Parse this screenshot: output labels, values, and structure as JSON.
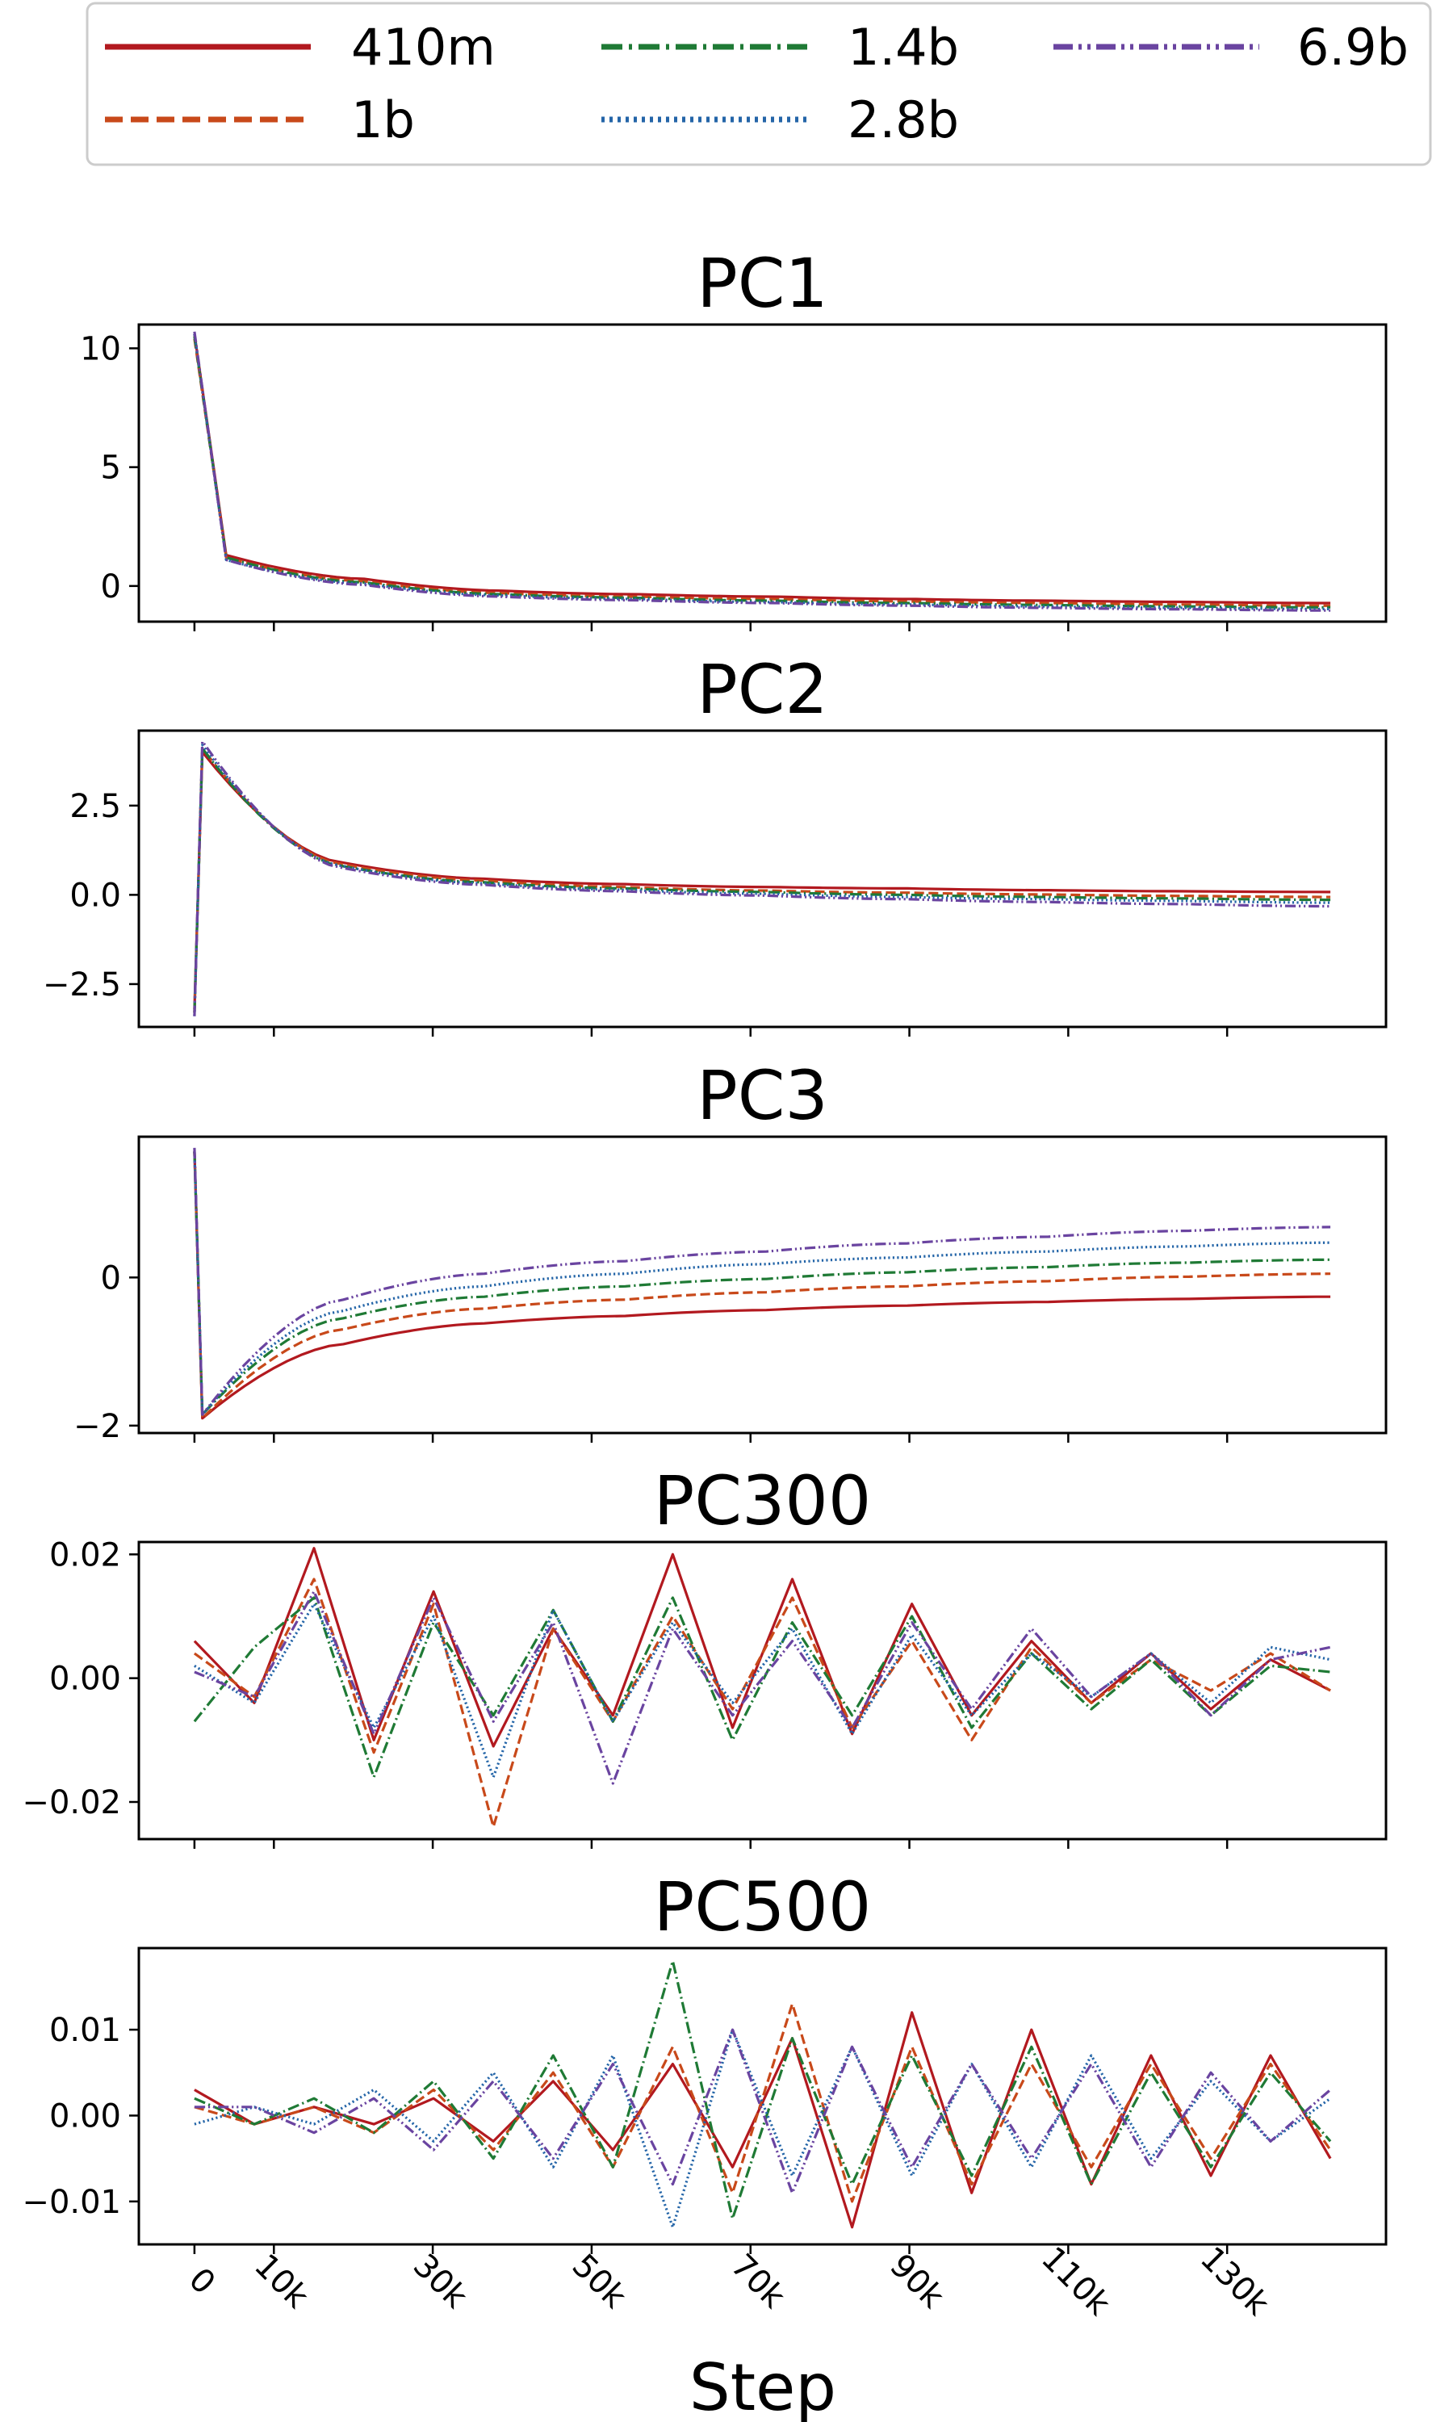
{
  "legend": {
    "position": "top-center",
    "entries": [
      {
        "label": "410m",
        "color": "#b2191f",
        "dash": "solid"
      },
      {
        "label": "1b",
        "color": "#c8491a",
        "dash": "dashed"
      },
      {
        "label": "1.4b",
        "color": "#1f7a35",
        "dash": "dashdot"
      },
      {
        "label": "2.8b",
        "color": "#2465a8",
        "dash": "dotted"
      },
      {
        "label": "6.9b",
        "color": "#6a44a0",
        "dash": "dashdotdot"
      }
    ]
  },
  "chart_data": [
    {
      "type": "line",
      "title": "PC1",
      "xlabel": "",
      "ylabel": "",
      "xlim": [
        -7000,
        150000
      ],
      "ylim": [
        -1.5,
        11
      ],
      "yticks": [
        {
          "v": 10,
          "label": "10"
        },
        {
          "v": 5,
          "label": "5"
        },
        {
          "v": 0,
          "label": "0"
        }
      ],
      "shape": "decay",
      "series": [
        {
          "name": "410m",
          "values": [
            10.6,
            1.3,
            0.3,
            -0.2,
            -0.35,
            -0.45,
            -0.55,
            -0.62,
            -0.67,
            -0.72
          ]
        },
        {
          "name": "1b",
          "values": [
            10.4,
            1.2,
            0.2,
            -0.3,
            -0.45,
            -0.55,
            -0.65,
            -0.72,
            -0.78,
            -0.83
          ]
        },
        {
          "name": "1.4b",
          "values": [
            10.5,
            1.2,
            0.15,
            -0.35,
            -0.5,
            -0.62,
            -0.72,
            -0.8,
            -0.86,
            -0.9
          ]
        },
        {
          "name": "2.8b",
          "values": [
            10.6,
            1.1,
            0.1,
            -0.4,
            -0.55,
            -0.68,
            -0.78,
            -0.86,
            -0.92,
            -0.97
          ]
        },
        {
          "name": "6.9b",
          "values": [
            10.7,
            1.1,
            0.05,
            -0.45,
            -0.6,
            -0.72,
            -0.83,
            -0.92,
            -0.98,
            -1.03
          ]
        }
      ]
    },
    {
      "type": "line",
      "title": "PC2",
      "xlabel": "",
      "ylabel": "",
      "xlim": [
        -7000,
        150000
      ],
      "ylim": [
        -3.7,
        4.6
      ],
      "yticks": [
        {
          "v": 2.5,
          "label": "2.5"
        },
        {
          "v": 0,
          "label": "0.0"
        },
        {
          "v": -2.5,
          "label": "−2.5"
        }
      ],
      "shape": "spike_decay",
      "series": [
        {
          "name": "410m",
          "values": [
            -3.2,
            4.0,
            0.9,
            0.45,
            0.3,
            0.22,
            0.18,
            0.13,
            0.1,
            0.08
          ]
        },
        {
          "name": "1b",
          "values": [
            -3.3,
            4.1,
            0.85,
            0.4,
            0.22,
            0.12,
            0.06,
            0.01,
            -0.03,
            -0.06
          ]
        },
        {
          "name": "1.4b",
          "values": [
            -3.3,
            4.1,
            0.8,
            0.35,
            0.18,
            0.08,
            0.0,
            -0.06,
            -0.1,
            -0.14
          ]
        },
        {
          "name": "2.8b",
          "values": [
            -3.4,
            4.2,
            0.8,
            0.32,
            0.14,
            0.03,
            -0.06,
            -0.12,
            -0.17,
            -0.22
          ]
        },
        {
          "name": "6.9b",
          "values": [
            -3.4,
            4.3,
            0.75,
            0.28,
            0.1,
            -0.02,
            -0.12,
            -0.2,
            -0.26,
            -0.32
          ]
        }
      ]
    },
    {
      "type": "line",
      "title": "PC3",
      "xlabel": "",
      "ylabel": "",
      "xlim": [
        -7000,
        150000
      ],
      "ylim": [
        -2.1,
        1.9
      ],
      "yticks": [
        {
          "v": 0,
          "label": "0"
        },
        {
          "v": -2,
          "label": "−2"
        }
      ],
      "shape": "dip_recover",
      "series": [
        {
          "name": "410m",
          "values": [
            1.7,
            -1.9,
            -0.9,
            -0.62,
            -0.52,
            -0.44,
            -0.38,
            -0.33,
            -0.29,
            -0.26
          ]
        },
        {
          "name": "1b",
          "values": [
            1.7,
            -1.9,
            -0.7,
            -0.42,
            -0.3,
            -0.2,
            -0.12,
            -0.05,
            0.01,
            0.05
          ]
        },
        {
          "name": "1.4b",
          "values": [
            1.7,
            -1.85,
            -0.55,
            -0.26,
            -0.12,
            -0.02,
            0.07,
            0.14,
            0.2,
            0.24
          ]
        },
        {
          "name": "2.8b",
          "values": [
            1.7,
            -1.85,
            -0.45,
            -0.12,
            0.05,
            0.18,
            0.27,
            0.35,
            0.42,
            0.47
          ]
        },
        {
          "name": "6.9b",
          "values": [
            1.75,
            -1.85,
            -0.3,
            0.05,
            0.22,
            0.35,
            0.46,
            0.55,
            0.63,
            0.68
          ]
        }
      ]
    },
    {
      "type": "line",
      "title": "PC300",
      "xlabel": "",
      "ylabel": "",
      "xlim": [
        -7000,
        150000
      ],
      "ylim": [
        -0.026,
        0.022
      ],
      "yticks": [
        {
          "v": 0.02,
          "label": "0.02"
        },
        {
          "v": 0,
          "label": "0.00"
        },
        {
          "v": -0.02,
          "label": "−0.02"
        }
      ],
      "shape": "noise",
      "series": [
        {
          "name": "410m",
          "values": [
            0.006,
            -0.004,
            0.021,
            -0.01,
            0.014,
            -0.011,
            0.008,
            -0.006,
            0.02,
            -0.008,
            0.016,
            -0.009,
            0.012,
            -0.006,
            0.006,
            -0.004,
            0.004,
            -0.005,
            0.003,
            -0.002
          ]
        },
        {
          "name": "1b",
          "values": [
            0.004,
            -0.003,
            0.016,
            -0.012,
            0.012,
            -0.024,
            0.008,
            -0.007,
            0.01,
            -0.005,
            0.013,
            -0.008,
            0.006,
            -0.01,
            0.005,
            -0.004,
            0.003,
            -0.002,
            0.004,
            -0.002
          ]
        },
        {
          "name": "1.4b",
          "values": [
            -0.007,
            0.005,
            0.013,
            -0.016,
            0.009,
            -0.006,
            0.011,
            -0.007,
            0.013,
            -0.01,
            0.009,
            -0.006,
            0.01,
            -0.008,
            0.004,
            -0.005,
            0.003,
            -0.006,
            0.002,
            0.001
          ]
        },
        {
          "name": "2.8b",
          "values": [
            0.002,
            -0.004,
            0.012,
            -0.008,
            0.01,
            -0.016,
            0.011,
            -0.007,
            0.009,
            -0.004,
            0.008,
            -0.009,
            0.007,
            -0.006,
            0.004,
            -0.003,
            0.004,
            -0.004,
            0.005,
            0.003
          ]
        },
        {
          "name": "6.9b",
          "values": [
            0.001,
            -0.003,
            0.014,
            -0.009,
            0.013,
            -0.007,
            0.009,
            -0.017,
            0.008,
            -0.006,
            0.006,
            -0.008,
            0.009,
            -0.005,
            0.008,
            -0.003,
            0.004,
            -0.006,
            0.003,
            0.005
          ]
        }
      ]
    },
    {
      "type": "line",
      "title": "PC500",
      "xlabel": "Step",
      "ylabel": "",
      "xlim": [
        -7000,
        150000
      ],
      "ylim": [
        -0.015,
        0.0195
      ],
      "yticks": [
        {
          "v": 0.01,
          "label": "0.01"
        },
        {
          "v": 0,
          "label": "0.00"
        },
        {
          "v": -0.01,
          "label": "−0.01"
        }
      ],
      "shape": "noise",
      "series": [
        {
          "name": "410m",
          "values": [
            0.003,
            -0.001,
            0.001,
            -0.001,
            0.002,
            -0.003,
            0.004,
            -0.004,
            0.006,
            -0.006,
            0.009,
            -0.013,
            0.012,
            -0.009,
            0.01,
            -0.008,
            0.007,
            -0.007,
            0.007,
            -0.005
          ]
        },
        {
          "name": "1b",
          "values": [
            0.001,
            -0.001,
            0.001,
            -0.002,
            0.003,
            -0.004,
            0.005,
            -0.006,
            0.008,
            -0.009,
            0.013,
            -0.01,
            0.008,
            -0.008,
            0.006,
            -0.006,
            0.006,
            -0.005,
            0.006,
            -0.004
          ]
        },
        {
          "name": "1.4b",
          "values": [
            0.002,
            -0.001,
            0.002,
            -0.002,
            0.004,
            -0.005,
            0.007,
            -0.006,
            0.018,
            -0.012,
            0.009,
            -0.008,
            0.007,
            -0.007,
            0.008,
            -0.008,
            0.005,
            -0.006,
            0.005,
            -0.003
          ]
        },
        {
          "name": "2.8b",
          "values": [
            -0.001,
            0.001,
            -0.001,
            0.003,
            -0.003,
            0.005,
            -0.006,
            0.007,
            -0.013,
            0.01,
            -0.007,
            0.008,
            -0.007,
            0.006,
            -0.006,
            0.007,
            -0.005,
            0.004,
            -0.003,
            0.002
          ]
        },
        {
          "name": "6.9b",
          "values": [
            0.001,
            0.001,
            -0.002,
            0.002,
            -0.004,
            0.004,
            -0.005,
            0.006,
            -0.008,
            0.01,
            -0.009,
            0.008,
            -0.006,
            0.006,
            -0.005,
            0.006,
            -0.006,
            0.005,
            -0.003,
            0.003
          ]
        }
      ]
    }
  ],
  "xaxis": {
    "label": "Step",
    "ticks": [
      {
        "v": 0,
        "label": "0"
      },
      {
        "v": 10000,
        "label": "10k"
      },
      {
        "v": 30000,
        "label": "30k"
      },
      {
        "v": 50000,
        "label": "50k"
      },
      {
        "v": 70000,
        "label": "70k"
      },
      {
        "v": 90000,
        "label": "90k"
      },
      {
        "v": 110000,
        "label": "110k"
      },
      {
        "v": 130000,
        "label": "130k"
      }
    ],
    "last_step": 143000
  }
}
